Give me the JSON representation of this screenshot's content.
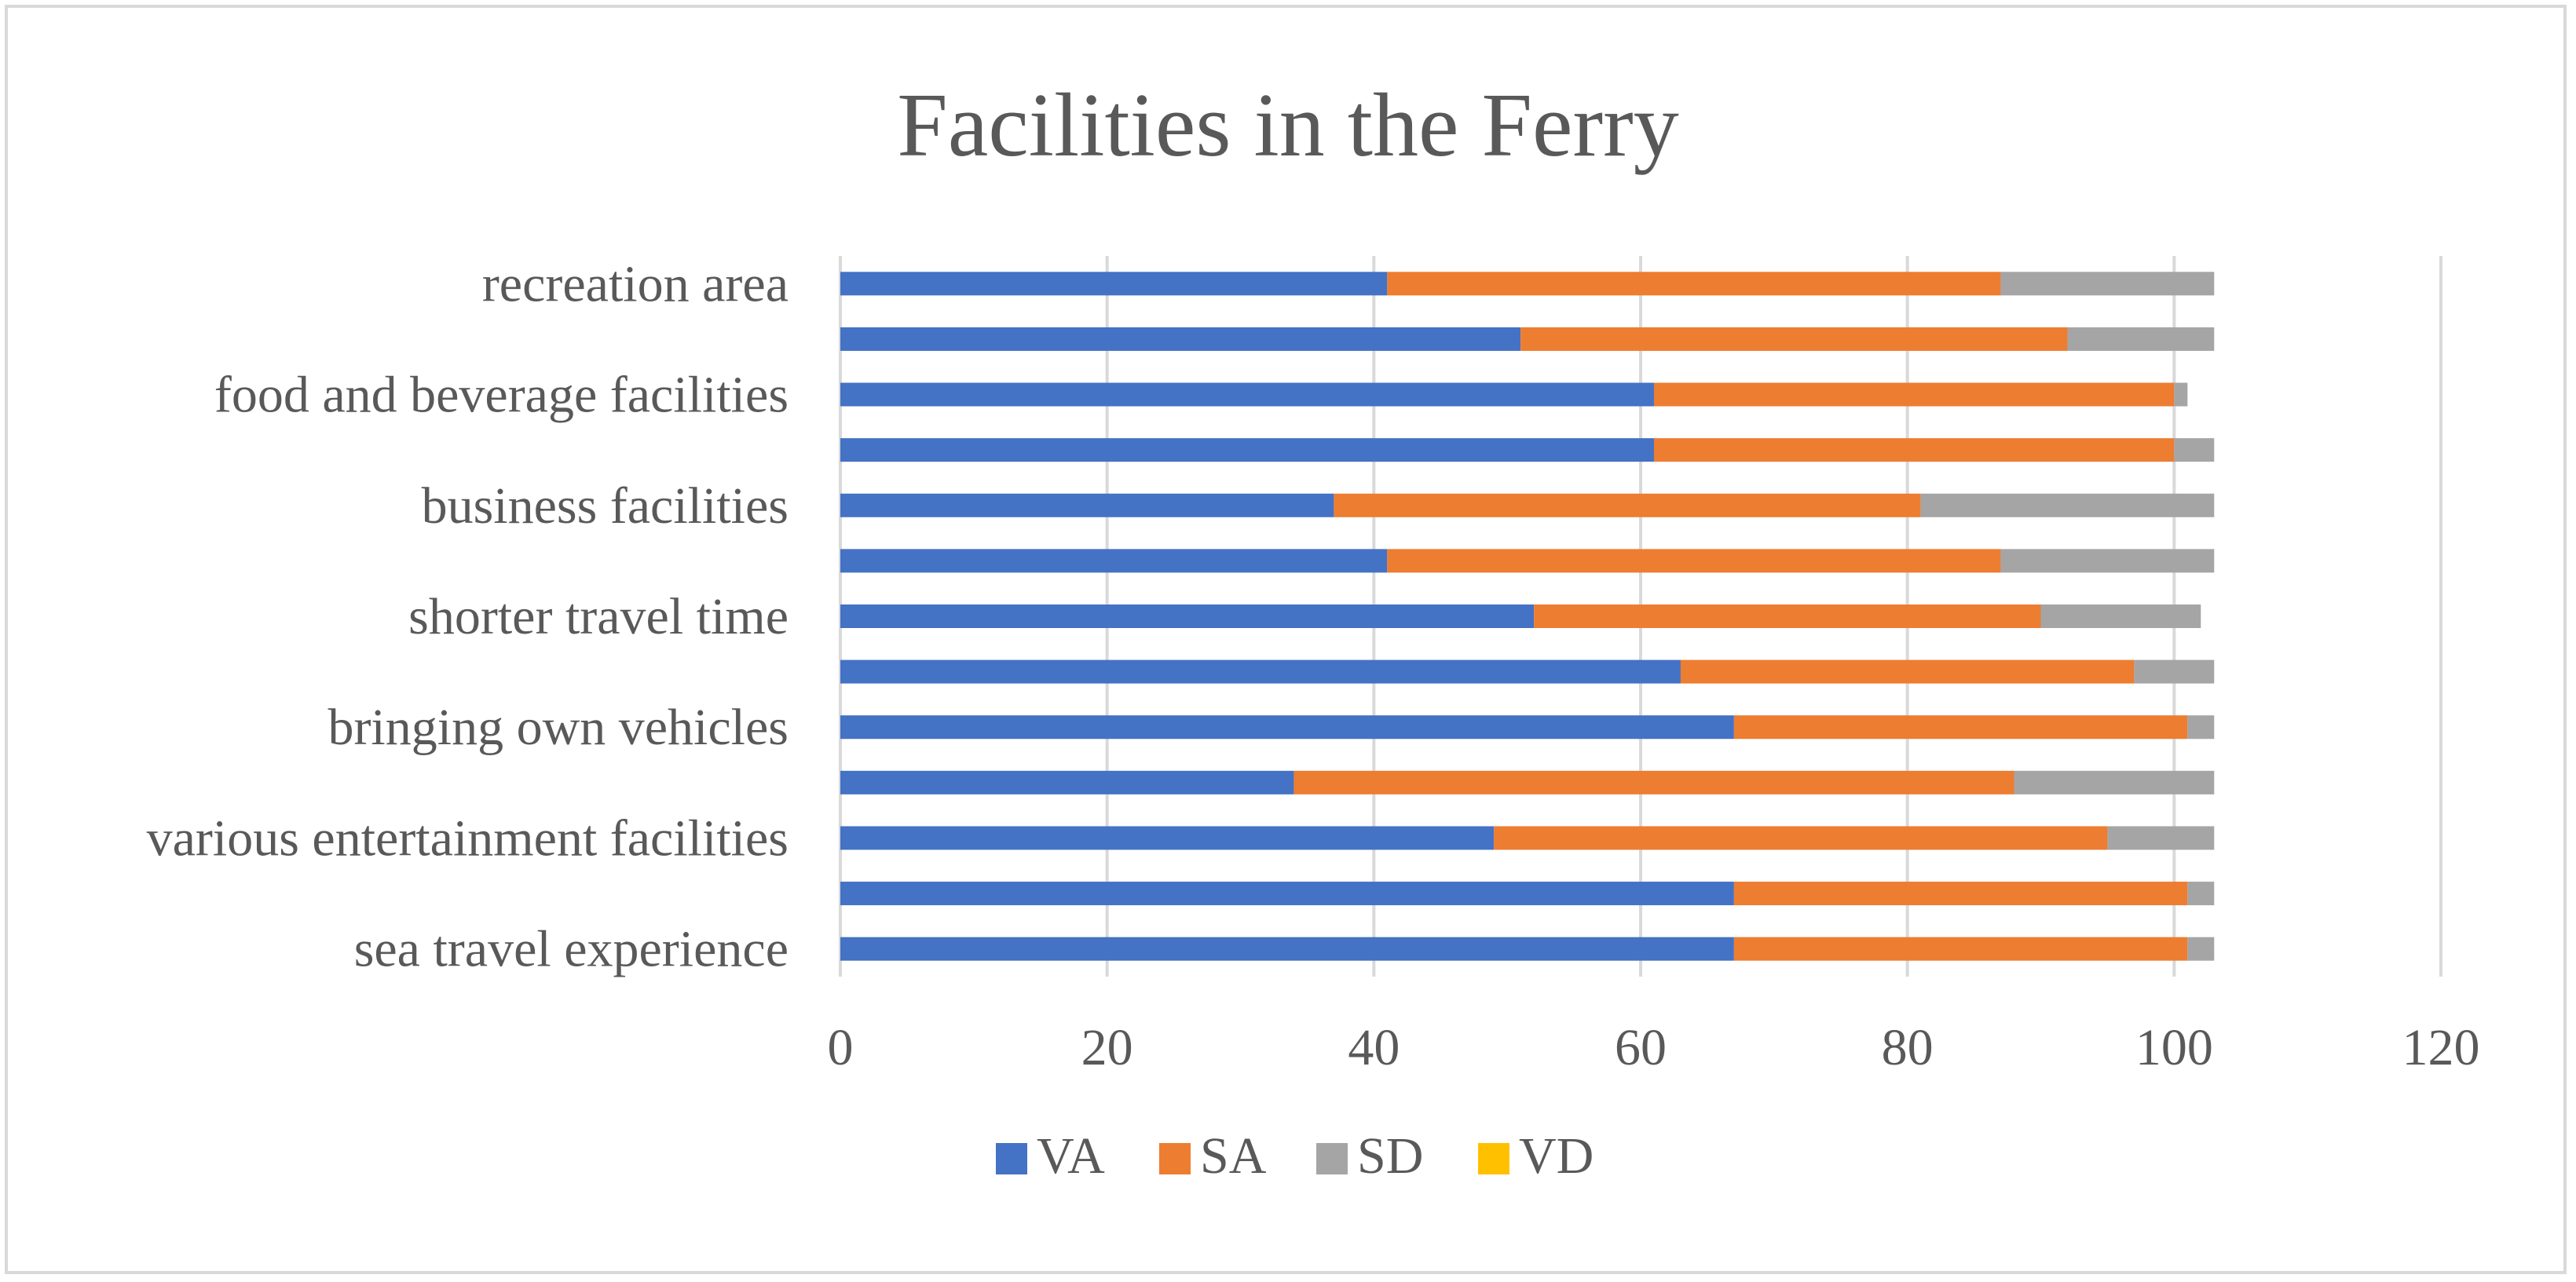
{
  "chart_data": {
    "type": "bar",
    "orientation": "horizontal",
    "stacked": true,
    "title": "Facilities in the Ferry",
    "xlabel": "",
    "ylabel": "",
    "xlim": [
      0,
      120
    ],
    "x_ticks": [
      0,
      20,
      40,
      60,
      80,
      100,
      120
    ],
    "grid": true,
    "legend_position": "bottom",
    "categories": [
      "sea travel experience",
      "",
      "various entertainment facilities",
      "",
      "bringing own vehicles",
      "",
      "shorter travel time",
      "",
      "business facilities",
      "",
      "food and beverage facilities",
      "",
      "recreation area"
    ],
    "series": [
      {
        "name": "VA",
        "color": "#4472c4",
        "values": [
          67,
          67,
          49,
          34,
          67,
          63,
          52,
          41,
          37,
          61,
          61,
          51,
          41
        ]
      },
      {
        "name": "SA",
        "color": "#ed7d31",
        "values": [
          34,
          34,
          46,
          54,
          34,
          34,
          38,
          46,
          44,
          39,
          39,
          41,
          46
        ]
      },
      {
        "name": "SD",
        "color": "#a5a5a5",
        "values": [
          2,
          2,
          8,
          15,
          2,
          6,
          12,
          16,
          22,
          3,
          1,
          11,
          16
        ]
      },
      {
        "name": "VD",
        "color": "#ffc000",
        "values": [
          0,
          0,
          0,
          0,
          0,
          0,
          0,
          0,
          0,
          0,
          0,
          0,
          0
        ]
      }
    ]
  }
}
